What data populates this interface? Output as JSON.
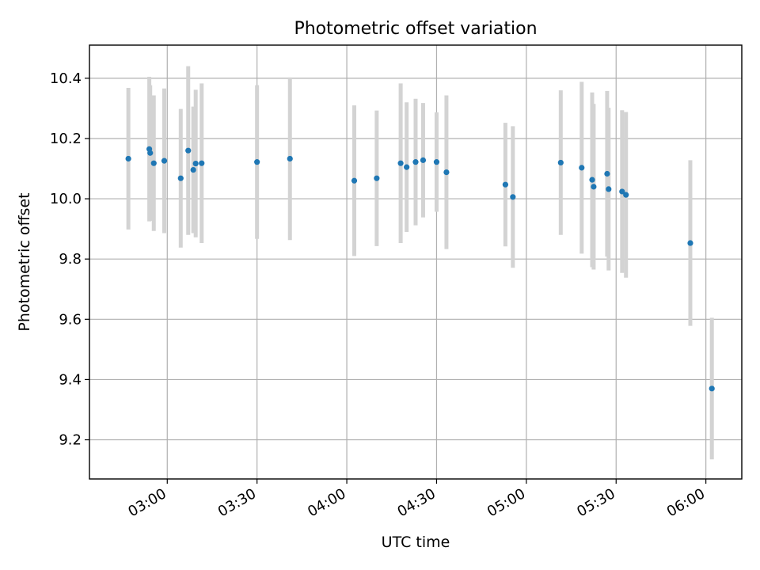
{
  "chart_data": {
    "type": "scatter",
    "title": "Photometric offset variation",
    "xlabel": "UTC time",
    "ylabel": "Photometric offset",
    "x_axis_type": "time",
    "xlim": [
      "02:34",
      "06:12"
    ],
    "ylim": [
      9.07,
      10.51
    ],
    "grid": true,
    "x_ticks": [
      "03:00",
      "03:30",
      "04:00",
      "04:30",
      "05:00",
      "05:30",
      "06:00"
    ],
    "y_ticks": [
      9.2,
      9.4,
      9.6,
      9.8,
      10.0,
      10.2,
      10.4
    ],
    "y_tick_labels": [
      "9.2",
      "9.4",
      "9.6",
      "9.8",
      "10.0",
      "10.2",
      "10.4"
    ],
    "point_color": "#1f77b4",
    "errorbar_color": "#d3d3d3",
    "points": [
      {
        "t": "02:47",
        "y": 10.133,
        "err": 0.235
      },
      {
        "t": "02:54",
        "y": 10.165,
        "err": 0.24
      },
      {
        "t": "02:54.3",
        "y": 10.152,
        "err": 0.225
      },
      {
        "t": "02:55.5",
        "y": 10.118,
        "err": 0.225
      },
      {
        "t": "02:59",
        "y": 10.126,
        "err": 0.24
      },
      {
        "t": "03:04.5",
        "y": 10.068,
        "err": 0.23
      },
      {
        "t": "03:07",
        "y": 10.16,
        "err": 0.28
      },
      {
        "t": "03:08.7",
        "y": 10.096,
        "err": 0.21
      },
      {
        "t": "03:09.5",
        "y": 10.117,
        "err": 0.245
      },
      {
        "t": "03:11.5",
        "y": 10.118,
        "err": 0.265
      },
      {
        "t": "03:30",
        "y": 10.122,
        "err": 0.255
      },
      {
        "t": "03:41",
        "y": 10.133,
        "err": 0.27
      },
      {
        "t": "04:02.5",
        "y": 10.06,
        "err": 0.25
      },
      {
        "t": "04:10",
        "y": 10.068,
        "err": 0.225
      },
      {
        "t": "04:18",
        "y": 10.118,
        "err": 0.265
      },
      {
        "t": "04:20",
        "y": 10.105,
        "err": 0.215
      },
      {
        "t": "04:23",
        "y": 10.122,
        "err": 0.21
      },
      {
        "t": "04:25.5",
        "y": 10.128,
        "err": 0.19
      },
      {
        "t": "04:30",
        "y": 10.122,
        "err": 0.165
      },
      {
        "t": "04:33.3",
        "y": 10.088,
        "err": 0.255
      },
      {
        "t": "04:53",
        "y": 10.047,
        "err": 0.205
      },
      {
        "t": "04:55.5",
        "y": 10.006,
        "err": 0.235
      },
      {
        "t": "05:11.5",
        "y": 10.12,
        "err": 0.24
      },
      {
        "t": "05:18.5",
        "y": 10.103,
        "err": 0.285
      },
      {
        "t": "05:22",
        "y": 10.063,
        "err": 0.29
      },
      {
        "t": "05:22.5",
        "y": 10.04,
        "err": 0.275
      },
      {
        "t": "05:27",
        "y": 10.083,
        "err": 0.275
      },
      {
        "t": "05:27.5",
        "y": 10.032,
        "err": 0.27
      },
      {
        "t": "05:32",
        "y": 10.024,
        "err": 0.27
      },
      {
        "t": "05:33.3",
        "y": 10.013,
        "err": 0.275
      },
      {
        "t": "05:54.8",
        "y": 9.853,
        "err": 0.275
      },
      {
        "t": "06:02",
        "y": 9.37,
        "err": 0.235
      }
    ]
  }
}
